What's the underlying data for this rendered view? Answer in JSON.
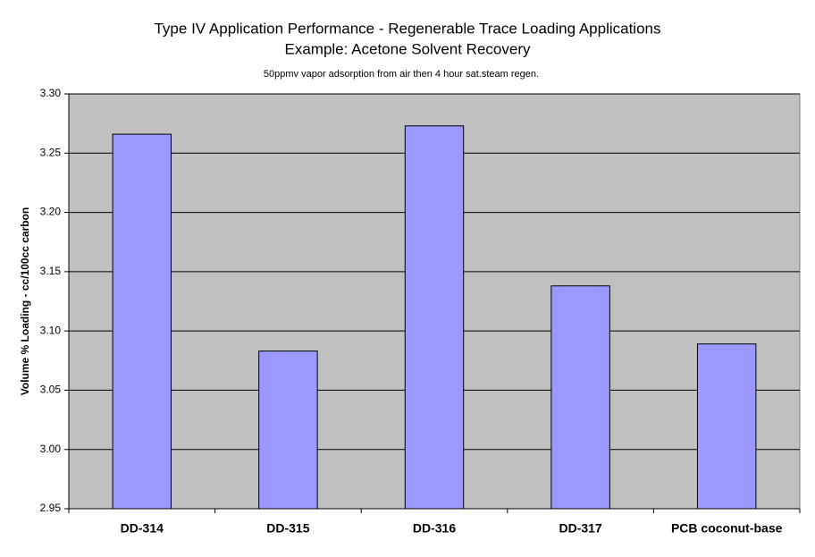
{
  "chart_data": {
    "type": "bar",
    "title": "Type IV Application Performance - Regenerable Trace Loading Applications",
    "subtitle": "Example: Acetone Solvent Recovery",
    "annotation": "50ppmv vapor adsorption from air then 4 hour sat.steam regen.",
    "y_label": "Volume % Loading - cc/100cc carbon",
    "categories": [
      "DD-314",
      "DD-315",
      "DD-316",
      "DD-317",
      "PCB coconut-base"
    ],
    "values": [
      3.266,
      3.083,
      3.273,
      3.138,
      3.089
    ],
    "color": "#9999ff",
    "ylim": [
      2.95,
      3.3
    ],
    "yticks": [
      2.95,
      {
        "value": 3,
        "label": "3.00"
      },
      3.05,
      {
        "value": 3.1,
        "label": "3.10"
      },
      3.15,
      {
        "value": 3.2,
        "label": "3.20"
      },
      3.25,
      {
        "value": 3.3,
        "label": "3.30"
      }
    ],
    "grid": true
  }
}
